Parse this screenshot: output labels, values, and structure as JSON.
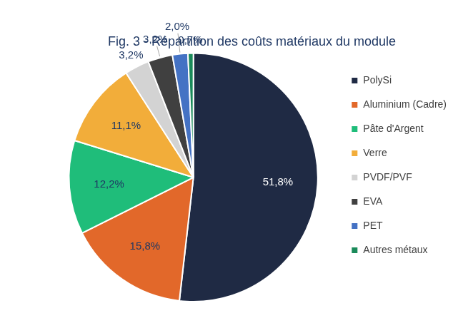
{
  "chart_data": {
    "type": "pie",
    "title": "Fig. 3 - Répartition des coûts matériaux du module",
    "categories": [
      "PolySi",
      "Aluminium (Cadre)",
      "Pâte d'Argent",
      "Verre",
      "PVDF/PVF",
      "EVA",
      "PET",
      "Autres métaux"
    ],
    "values": [
      51.8,
      15.8,
      12.2,
      11.1,
      3.2,
      3.2,
      2.0,
      0.7
    ],
    "value_labels": [
      "51,8%",
      "15,8%",
      "12,2%",
      "11,1%",
      "3,2%",
      "3,2%",
      "2,0%",
      "0,7%"
    ],
    "colors": [
      "#1f2a44",
      "#e2682a",
      "#1fbd7a",
      "#f2ad3a",
      "#d3d3d3",
      "#404040",
      "#4472c4",
      "#1a8a5a"
    ],
    "data_labels": true,
    "legend": "right"
  }
}
